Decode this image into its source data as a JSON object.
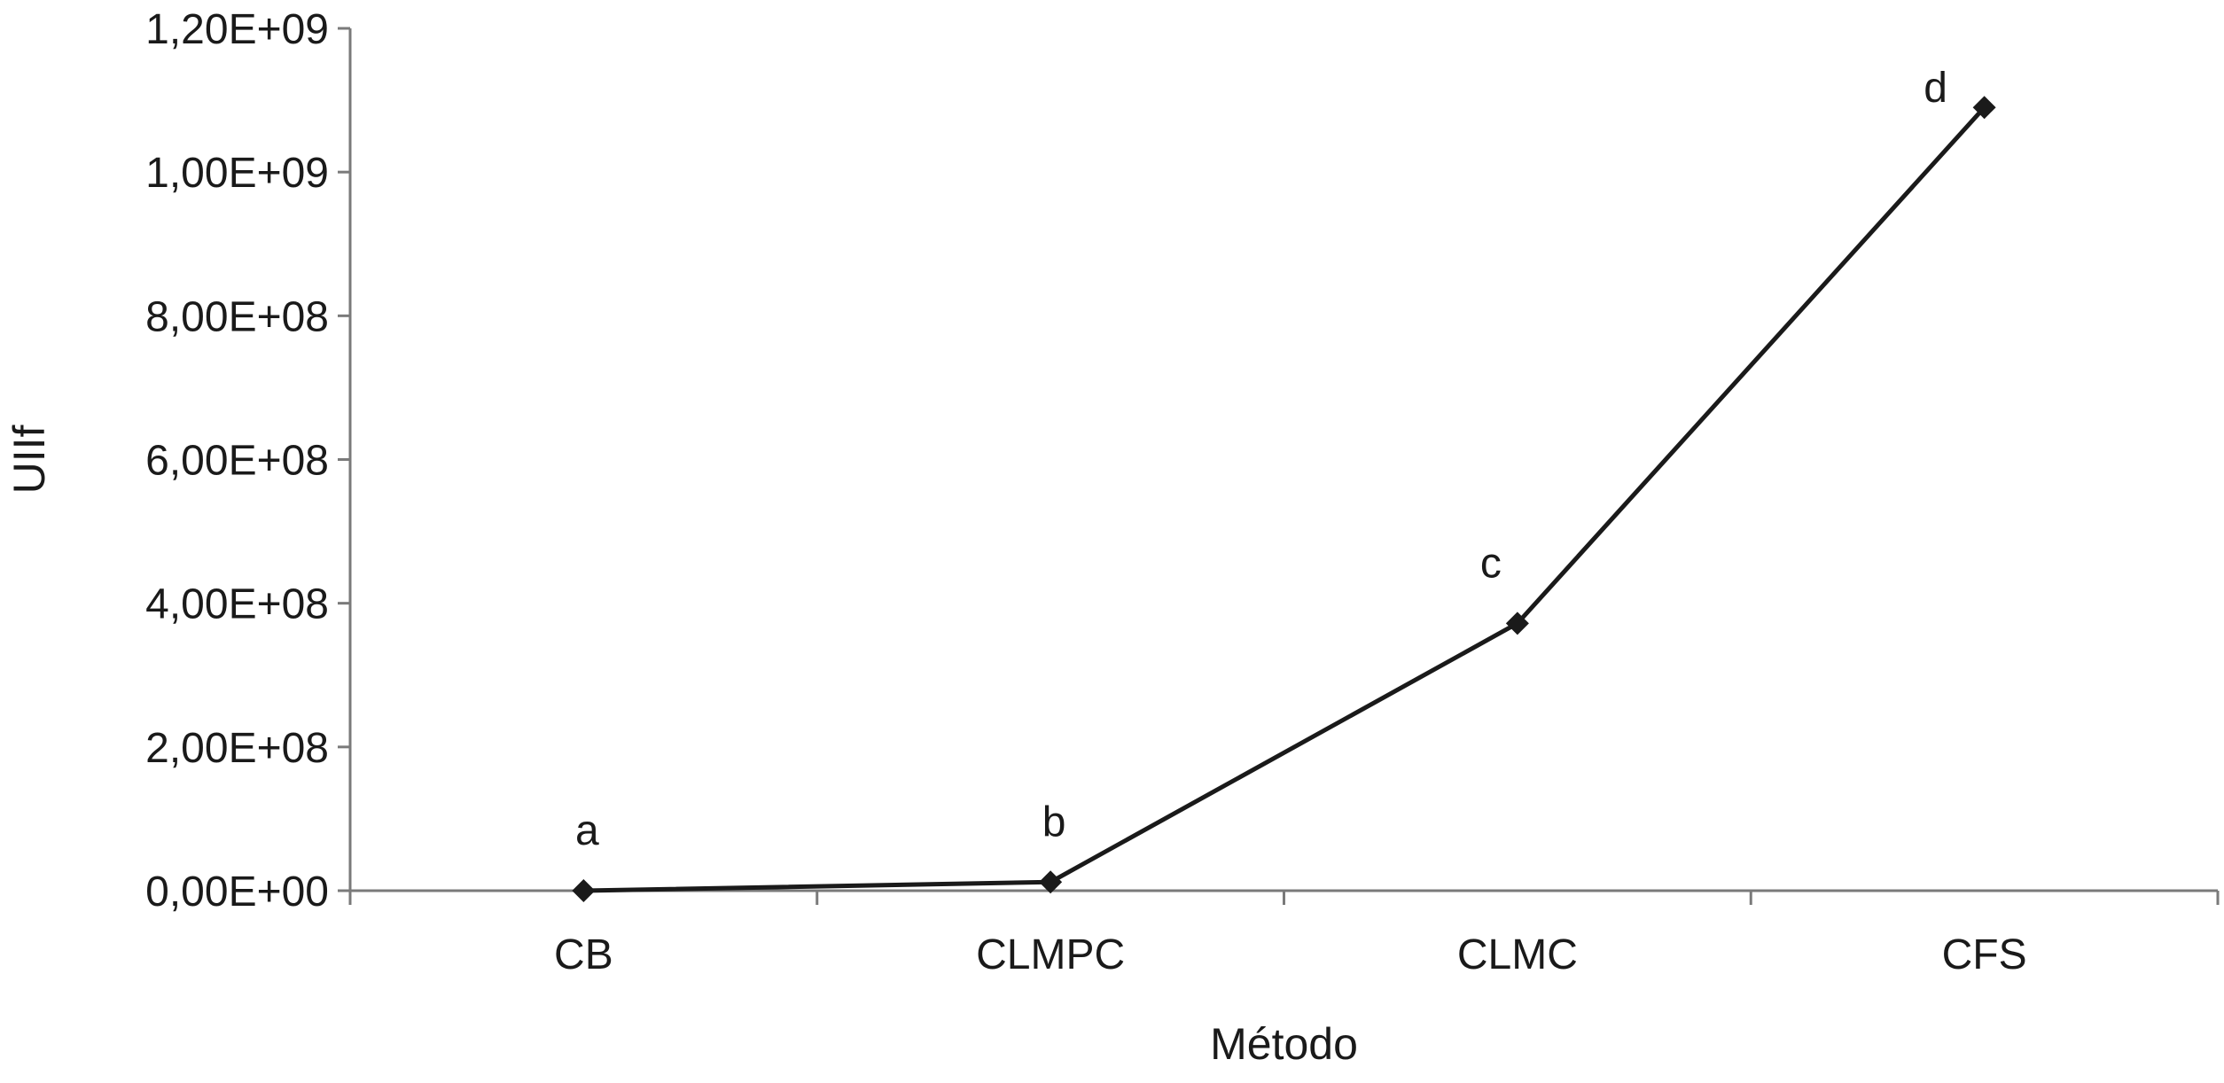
{
  "chart_data": {
    "type": "line",
    "title": "",
    "xlabel": "Método",
    "ylabel": "UIIf",
    "categories": [
      "CB",
      "CLMPC",
      "CLMC",
      "CFS"
    ],
    "series": [
      {
        "values": [
          0,
          12000000,
          372000000,
          1090000000
        ],
        "point_labels": [
          "a",
          "b",
          "c",
          "d"
        ],
        "color": "#1a1a1a",
        "marker": "diamond"
      }
    ],
    "ylim": [
      0,
      1200000000
    ],
    "yticks": [
      0,
      200000000,
      400000000,
      600000000,
      800000000,
      1000000000,
      1200000000
    ],
    "ytick_labels": [
      "0,00E+00",
      "2,00E+08",
      "4,00E+08",
      "6,00E+08",
      "8,00E+08",
      "1,00E+09",
      "1,20E+09"
    ],
    "grid": false,
    "legend": false
  }
}
